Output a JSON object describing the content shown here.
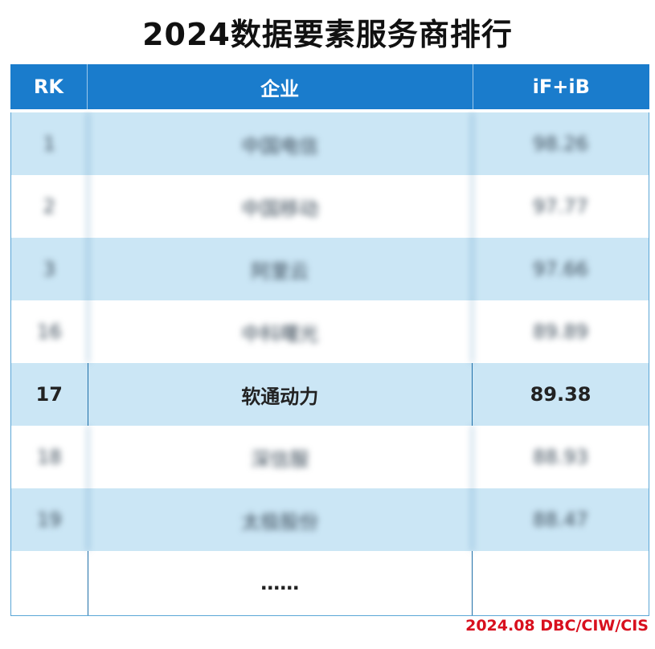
{
  "title": "2024数据要素服务商排行",
  "table": {
    "headers": [
      "RK",
      "企业",
      "iF+iB"
    ],
    "rows": [
      {
        "rank": "1",
        "company": "中国电信",
        "score": "98.26",
        "blurred": true
      },
      {
        "rank": "2",
        "company": "中国移动",
        "score": "97.77",
        "blurred": true
      },
      {
        "rank": "3",
        "company": "阿里云",
        "score": "97.66",
        "blurred": true
      },
      {
        "rank": "16",
        "company": "中科曙光",
        "score": "89.89",
        "blurred": true
      },
      {
        "rank": "17",
        "company": "软通动力",
        "score": "89.38",
        "blurred": false
      },
      {
        "rank": "18",
        "company": "深信服",
        "score": "88.93",
        "blurred": true
      },
      {
        "rank": "19",
        "company": "太极股份",
        "score": "88.47",
        "blurred": true
      }
    ],
    "ellipsis": "……"
  },
  "footer": "2024.08 DBC/CIW/CIS",
  "colors": {
    "header": "#1a7ccc",
    "alt_row": "#cbe6f5",
    "footer": "#d8101e"
  }
}
